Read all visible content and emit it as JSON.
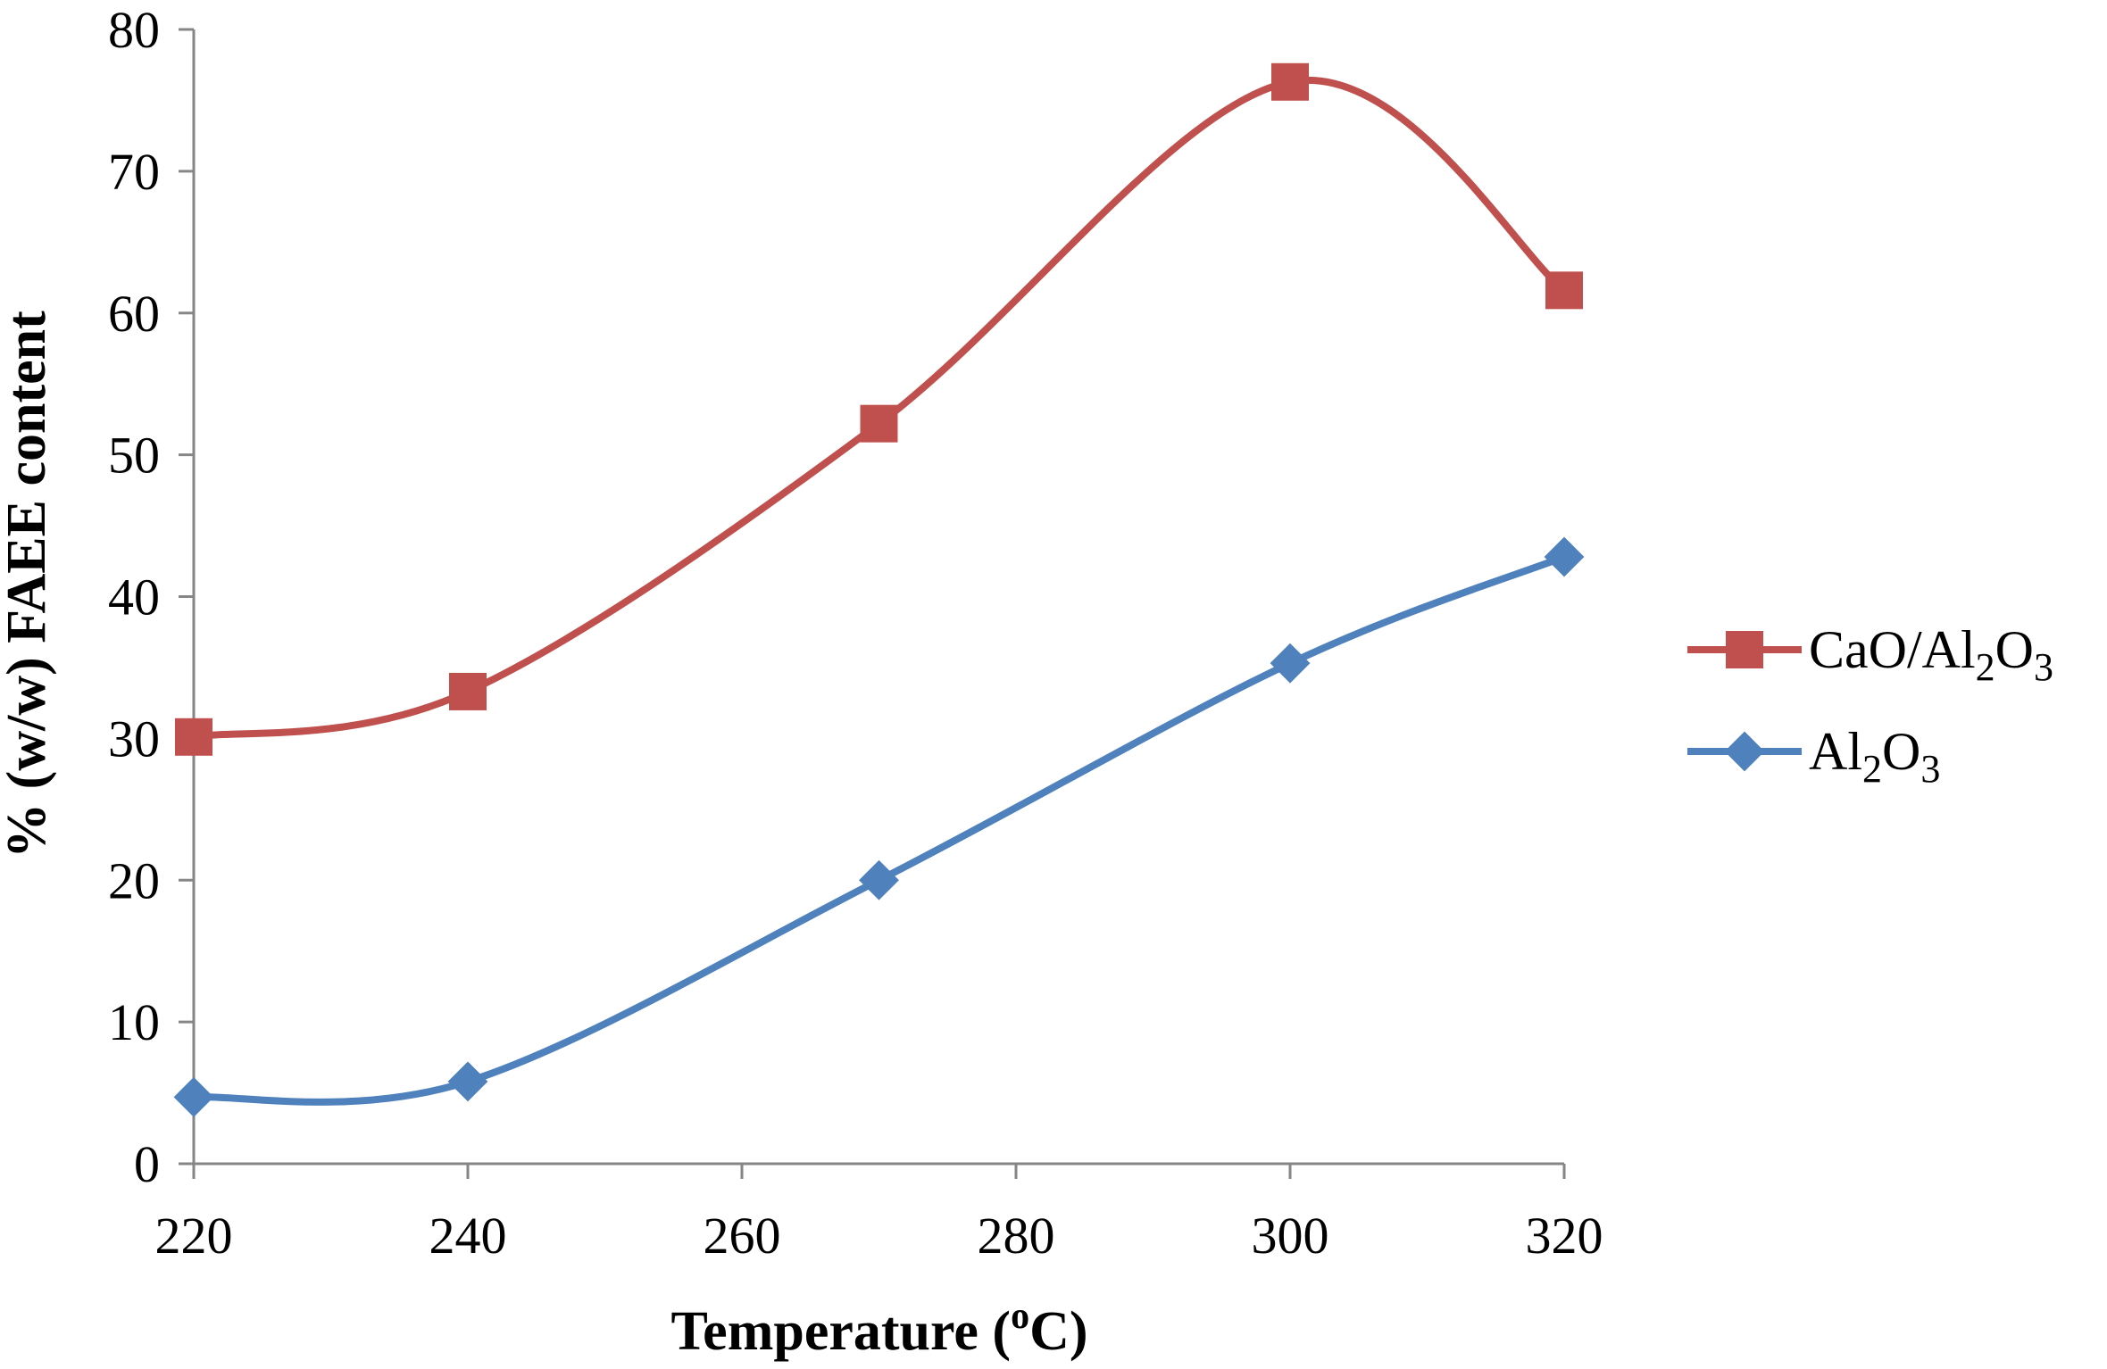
{
  "chart_data": {
    "type": "line",
    "title": "",
    "xlabel": "Temperature (oC)",
    "xlabel_parts": {
      "prefix": "Temperature (",
      "superscript": "o",
      "suffix": "C)"
    },
    "ylabel": "% (w/w) FAEE content",
    "xlim": [
      220,
      320
    ],
    "ylim": [
      0,
      80
    ],
    "x_ticks": [
      "220",
      "240",
      "260",
      "280",
      "300",
      "320"
    ],
    "y_ticks": [
      "0",
      "10",
      "20",
      "30",
      "40",
      "50",
      "60",
      "70",
      "80"
    ],
    "grid": false,
    "legend_position": "right",
    "smooth": true,
    "series": [
      {
        "name": "CaO/Al2O3",
        "name_parts": [
          [
            "CaO/Al",
            false
          ],
          [
            "2",
            true
          ],
          [
            "O",
            false
          ],
          [
            "3",
            true
          ]
        ],
        "marker": "square",
        "color": "#C0504D",
        "x": [
          220,
          240,
          270,
          300,
          320
        ],
        "y": [
          30.1,
          33.3,
          52.2,
          76.3,
          61.6
        ]
      },
      {
        "name": "Al2O3",
        "name_parts": [
          [
            "Al",
            false
          ],
          [
            "2",
            true
          ],
          [
            "O",
            false
          ],
          [
            "3",
            true
          ]
        ],
        "marker": "diamond",
        "color": "#4F81BD",
        "x": [
          220,
          240,
          270,
          300,
          320
        ],
        "y": [
          4.7,
          5.8,
          20.0,
          35.3,
          42.8
        ]
      }
    ]
  }
}
